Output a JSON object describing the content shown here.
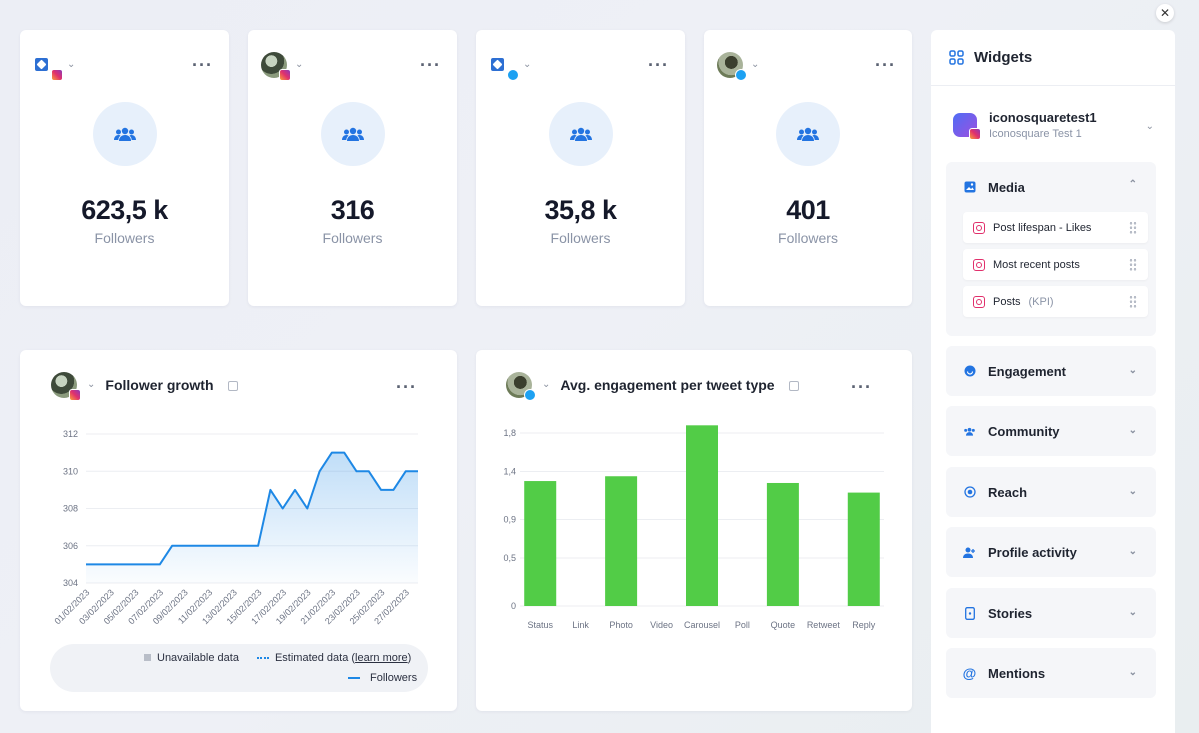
{
  "stats": [
    {
      "value": "623,5 k",
      "label": "Followers",
      "network": "instagram"
    },
    {
      "value": "316",
      "label": "Followers",
      "network": "instagram"
    },
    {
      "value": "35,8 k",
      "label": "Followers",
      "network": "twitter"
    },
    {
      "value": "401",
      "label": "Followers",
      "network": "twitter"
    }
  ],
  "follower_growth": {
    "title": "Follower growth",
    "legend": {
      "unavailable": "Unavailable data",
      "estimated": "Estimated data (",
      "learn_more": "learn more",
      "estimated_close": ")",
      "followers": "Followers"
    }
  },
  "engagement": {
    "title": "Avg. engagement per tweet type"
  },
  "chart_data": [
    {
      "type": "area",
      "x": [
        "01/02/2023",
        "02/02/2023",
        "03/02/2023",
        "04/02/2023",
        "05/02/2023",
        "06/02/2023",
        "07/02/2023",
        "08/02/2023",
        "09/02/2023",
        "10/02/2023",
        "11/02/2023",
        "12/02/2023",
        "13/02/2023",
        "14/02/2023",
        "15/02/2023",
        "16/02/2023",
        "17/02/2023",
        "18/02/2023",
        "19/02/2023",
        "20/02/2023",
        "21/02/2023",
        "22/02/2023",
        "23/02/2023",
        "24/02/2023",
        "25/02/2023",
        "26/02/2023",
        "27/02/2023",
        "28/02/2023"
      ],
      "x_ticks": [
        "01/02/2023",
        "03/02/2023",
        "05/02/2023",
        "07/02/2023",
        "09/02/2023",
        "11/02/2023",
        "13/02/2023",
        "15/02/2023",
        "17/02/2023",
        "19/02/2023",
        "21/02/2023",
        "23/02/2023",
        "25/02/2023",
        "27/02/2023"
      ],
      "series": [
        {
          "name": "Followers",
          "values": [
            305,
            305,
            305,
            305,
            305,
            305,
            305,
            306,
            306,
            306,
            306,
            306,
            306,
            306,
            306,
            309,
            308,
            309,
            308,
            310,
            311,
            311,
            310,
            310,
            309,
            309,
            310,
            310
          ]
        }
      ],
      "y_ticks": [
        "304",
        "306",
        "308",
        "310",
        "312"
      ],
      "ylim": [
        304,
        312
      ],
      "grid": true
    },
    {
      "type": "bar",
      "categories": [
        "Status",
        "Link",
        "Photo",
        "Video",
        "Carousel",
        "Poll",
        "Quote",
        "Retweet",
        "Reply"
      ],
      "values": [
        1.3,
        0,
        1.35,
        0,
        1.88,
        0,
        1.28,
        0,
        1.18
      ],
      "y_ticks": [
        "0",
        "0,5",
        "0,9",
        "1,4",
        "1,8"
      ],
      "ylim": [
        0,
        1.8
      ],
      "color": "#52cc47",
      "grid": true
    }
  ],
  "sidebar": {
    "title": "Widgets",
    "account": {
      "name": "iconosquaretest1",
      "sub": "Iconosquare Test 1"
    },
    "media": {
      "label": "Media",
      "items": [
        {
          "label": "Post lifespan - Likes"
        },
        {
          "label": "Most recent posts"
        },
        {
          "label": "Posts",
          "suffix": "(KPI)"
        }
      ]
    },
    "sections": [
      {
        "label": "Engagement",
        "icon": "engagement-icon"
      },
      {
        "label": "Community",
        "icon": "community-icon"
      },
      {
        "label": "Reach",
        "icon": "reach-icon"
      },
      {
        "label": "Profile activity",
        "icon": "profile-activity-icon"
      },
      {
        "label": "Stories",
        "icon": "stories-icon"
      },
      {
        "label": "Mentions",
        "icon": "mentions-icon"
      }
    ]
  },
  "colors": {
    "accent": "#2374e1",
    "line": "#1e88e5",
    "bar": "#52cc47"
  }
}
